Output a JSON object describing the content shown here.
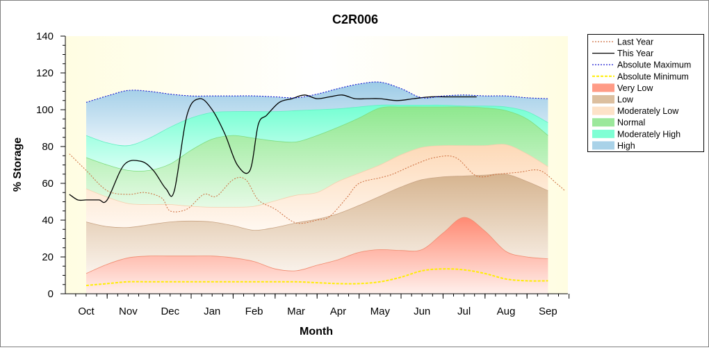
{
  "chart_data": {
    "type": "area",
    "title": "C2R006",
    "xlabel": "Month",
    "ylabel": "% Storage",
    "categories": [
      "Oct",
      "Nov",
      "Dec",
      "Jan",
      "Feb",
      "Mar",
      "Apr",
      "May",
      "Jun",
      "Jul",
      "Aug",
      "Sep"
    ],
    "ylim": [
      0,
      140
    ],
    "yticks": [
      0,
      20,
      40,
      60,
      80,
      100,
      120,
      140
    ],
    "grid": false,
    "legend_position": "right",
    "bands": {
      "x": [
        0,
        0.5,
        1,
        1.5,
        2,
        2.5,
        3,
        3.5,
        4,
        4.5,
        5,
        5.5,
        6,
        6.5,
        7,
        7.5,
        8,
        8.5,
        9,
        9.5,
        10,
        10.5,
        11
      ],
      "very_low_top": [
        11,
        16,
        19.5,
        20.5,
        20.5,
        20.5,
        20.5,
        19.5,
        17.5,
        13.5,
        12.5,
        15.5,
        18.5,
        22.5,
        24,
        23.5,
        24,
        33,
        41.5,
        34,
        23,
        20,
        19
      ],
      "low_top": [
        39,
        36.5,
        36,
        37.5,
        39,
        39.5,
        39,
        37,
        34.5,
        36,
        38.5,
        40.5,
        43.5,
        48,
        53,
        58,
        62,
        63.5,
        64,
        64.5,
        65,
        61,
        56
      ],
      "mod_low_top": [
        57,
        52.5,
        49,
        48.5,
        48.5,
        47.5,
        47,
        47,
        47.5,
        50.5,
        53.5,
        55,
        61,
        65.5,
        70,
        75.5,
        79.5,
        80.5,
        80.5,
        80.5,
        81,
        76,
        69
      ],
      "normal_top": [
        74,
        70,
        67,
        67,
        70.5,
        78,
        84,
        86,
        84.5,
        83,
        82.5,
        86,
        90.5,
        95.5,
        101,
        101.5,
        101.5,
        101.5,
        101.5,
        101,
        99.5,
        95,
        86
      ],
      "mod_high_top": [
        86,
        82,
        80.5,
        84.5,
        90.5,
        95.5,
        98.5,
        99,
        99,
        99,
        99.5,
        100,
        100.5,
        101.5,
        102.5,
        102.5,
        102.5,
        102.5,
        102,
        102,
        101.5,
        99,
        93
      ],
      "high_top": [
        104,
        107.5,
        110.5,
        110,
        108.5,
        107.5,
        107.5,
        107.5,
        107.5,
        107,
        106.5,
        108.5,
        111.5,
        114,
        115,
        111.5,
        106.5,
        107.5,
        108,
        107.5,
        107.5,
        106.5,
        106
      ]
    },
    "series": [
      {
        "name": "Last Year",
        "color": "#cc6a3a",
        "x": [
          -0.4,
          0,
          0.5,
          1,
          1.4,
          1.8,
          2,
          2.4,
          2.8,
          3.1,
          3.5,
          3.8,
          4.1,
          4.5,
          5,
          5.5,
          5.8,
          6.2,
          6.5,
          7,
          7.3,
          7.8,
          8.3,
          8.8,
          9.3,
          9.8,
          10.3,
          10.8,
          11.2,
          11.4
        ],
        "y": [
          76,
          67,
          56,
          54,
          55,
          52,
          45,
          46,
          54,
          53,
          62,
          62,
          51,
          46,
          38.5,
          40,
          42,
          52,
          60,
          63,
          65,
          70,
          74,
          74,
          64,
          65,
          66,
          67,
          60,
          56
        ]
      },
      {
        "name": "This Year",
        "color": "#000000",
        "x": [
          -0.4,
          -0.2,
          0,
          0.3,
          0.5,
          0.9,
          1.3,
          1.6,
          1.9,
          2.1,
          2.4,
          2.7,
          3.0,
          3.3,
          3.6,
          3.9,
          4.1,
          4.3,
          4.6,
          4.9,
          5.2,
          5.5,
          5.8,
          6.1,
          6.4,
          6.7,
          7.0,
          7.4,
          7.8,
          8.2,
          8.6,
          9.0,
          9.3
        ],
        "y": [
          54,
          51,
          51,
          51,
          51,
          70,
          72,
          67,
          57,
          56,
          97,
          106,
          100,
          87,
          70,
          67,
          92,
          97,
          104,
          106,
          108,
          106,
          107,
          108,
          106,
          106,
          106,
          105,
          106,
          107,
          107,
          107,
          107
        ]
      },
      {
        "name": "Absolute Maximum",
        "color": "#0000cc",
        "x": [
          0,
          0.5,
          1,
          1.5,
          2,
          2.5,
          3,
          3.5,
          4,
          4.5,
          5,
          5.5,
          6,
          6.5,
          7,
          7.5,
          8,
          8.5,
          9,
          9.5,
          10,
          10.5,
          11
        ],
        "y": [
          104,
          107.5,
          110.5,
          110,
          108.5,
          107.5,
          107.5,
          107.5,
          107.5,
          107,
          106.5,
          108.5,
          111.5,
          114,
          115,
          111.5,
          106.5,
          107.5,
          108,
          107.5,
          107.5,
          106.5,
          106
        ]
      },
      {
        "name": "Absolute Minimum",
        "color": "#ffee00",
        "x": [
          0,
          0.5,
          1,
          1.5,
          2,
          2.5,
          3,
          3.5,
          4,
          4.5,
          5,
          5.5,
          6,
          6.5,
          7,
          7.5,
          8,
          8.5,
          9,
          9.5,
          10,
          10.5,
          11
        ],
        "y": [
          4.5,
          5.5,
          6.5,
          6.5,
          6.5,
          6.5,
          6.5,
          6.5,
          6.5,
          6.5,
          6.5,
          6,
          5.5,
          5.5,
          6.5,
          9,
          12.5,
          13.5,
          13,
          11,
          8,
          7,
          7
        ]
      }
    ],
    "legend": [
      {
        "label": "Last Year",
        "kind": "line",
        "color": "#cc6a3a",
        "dash": "2,2"
      },
      {
        "label": "This Year",
        "kind": "line",
        "color": "#000000",
        "dash": ""
      },
      {
        "label": "Absolute Maximum",
        "kind": "line",
        "color": "#0000cc",
        "dash": "2,2"
      },
      {
        "label": "Absolute Minimum",
        "kind": "line",
        "color": "#ffee00",
        "dash": "4,2"
      },
      {
        "label": "Very Low",
        "kind": "box",
        "color": "#ff9b86"
      },
      {
        "label": "Low",
        "kind": "box",
        "color": "#dcbf9f"
      },
      {
        "label": "Moderately Low",
        "kind": "box",
        "color": "#fde2c8"
      },
      {
        "label": "Normal",
        "kind": "box",
        "color": "#9be89b"
      },
      {
        "label": "Moderately High",
        "kind": "box",
        "color": "#7fffd4"
      },
      {
        "label": "High",
        "kind": "box",
        "color": "#a9d2e8"
      }
    ],
    "colors": {
      "plot_background": "#fffde6",
      "very_low": "#ff9b86",
      "low": "#dcbf9f",
      "moderately_low": "#fde2c8",
      "normal": "#9be89b",
      "moderately_high": "#7fffd4",
      "high": "#a9d2e8"
    }
  }
}
